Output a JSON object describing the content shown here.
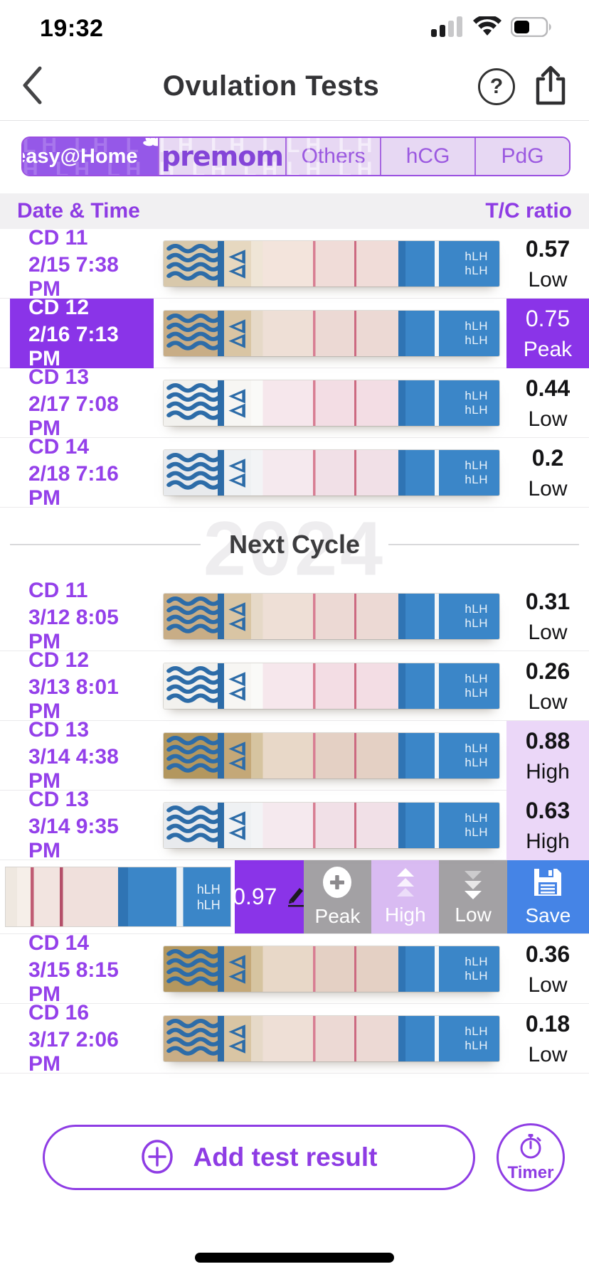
{
  "status_bar": {
    "time": "19:32"
  },
  "header": {
    "title": "Ovulation Tests",
    "help_glyph": "?"
  },
  "tabs": [
    {
      "label": "easy@Home",
      "selected": true
    },
    {
      "label": "premom",
      "selected": false
    },
    {
      "label": "Others",
      "selected": false
    },
    {
      "label": "hCG",
      "selected": false
    },
    {
      "label": "PdG",
      "selected": false
    }
  ],
  "tab_watermark": "LH LH LH LH LH LH LH LH LH LH LH LH",
  "columns": {
    "date_time": "Date & Time",
    "tc_ratio": "T/C ratio"
  },
  "strip_label": "hLH",
  "rows": [
    {
      "cd": "CD 11",
      "date": "2/15 7:38 PM",
      "ratio": "0.57",
      "level": "Low"
    },
    {
      "cd": "CD 12",
      "date": "2/16 7:13 PM",
      "ratio": "0.75",
      "level": "Peak"
    },
    {
      "cd": "CD 13",
      "date": "2/17 7:08 PM",
      "ratio": "0.44",
      "level": "Low"
    },
    {
      "cd": "CD 14",
      "date": "2/18 7:16 PM",
      "ratio": "0.2",
      "level": "Low"
    },
    {
      "cd": "CD 11",
      "date": "3/12 8:05 PM",
      "ratio": "0.31",
      "level": "Low"
    },
    {
      "cd": "CD 12",
      "date": "3/13 8:01 PM",
      "ratio": "0.26",
      "level": "Low"
    },
    {
      "cd": "CD 13",
      "date": "3/14 4:38 PM",
      "ratio": "0.88",
      "level": "High"
    },
    {
      "cd": "CD 13",
      "date": "3/14 9:35 PM",
      "ratio": "0.63",
      "level": "High"
    },
    {
      "cd": "CD 14",
      "date": "3/15 8:15 PM",
      "ratio": "0.36",
      "level": "Low"
    },
    {
      "cd": "CD 16",
      "date": "3/17 2:06 PM",
      "ratio": "0.18",
      "level": "Low"
    }
  ],
  "cycle_divider": {
    "label": "Next Cycle",
    "watermark": "2024"
  },
  "pending": {
    "value": "0.97",
    "buttons": {
      "peak": "Peak",
      "high": "High",
      "low": "Low",
      "save": "Save"
    }
  },
  "footer": {
    "add_label": "Add test result",
    "timer_label": "Timer"
  },
  "colors": {
    "accent_purple": "#8a34e8",
    "date_purple": "#9440ea",
    "lavender_high": "#ebd7f8",
    "gray_button": "#a3a1a4",
    "save_blue": "#4584e6",
    "strip_blue": "#3b86c8",
    "test_line_pink": "#c05c74"
  }
}
